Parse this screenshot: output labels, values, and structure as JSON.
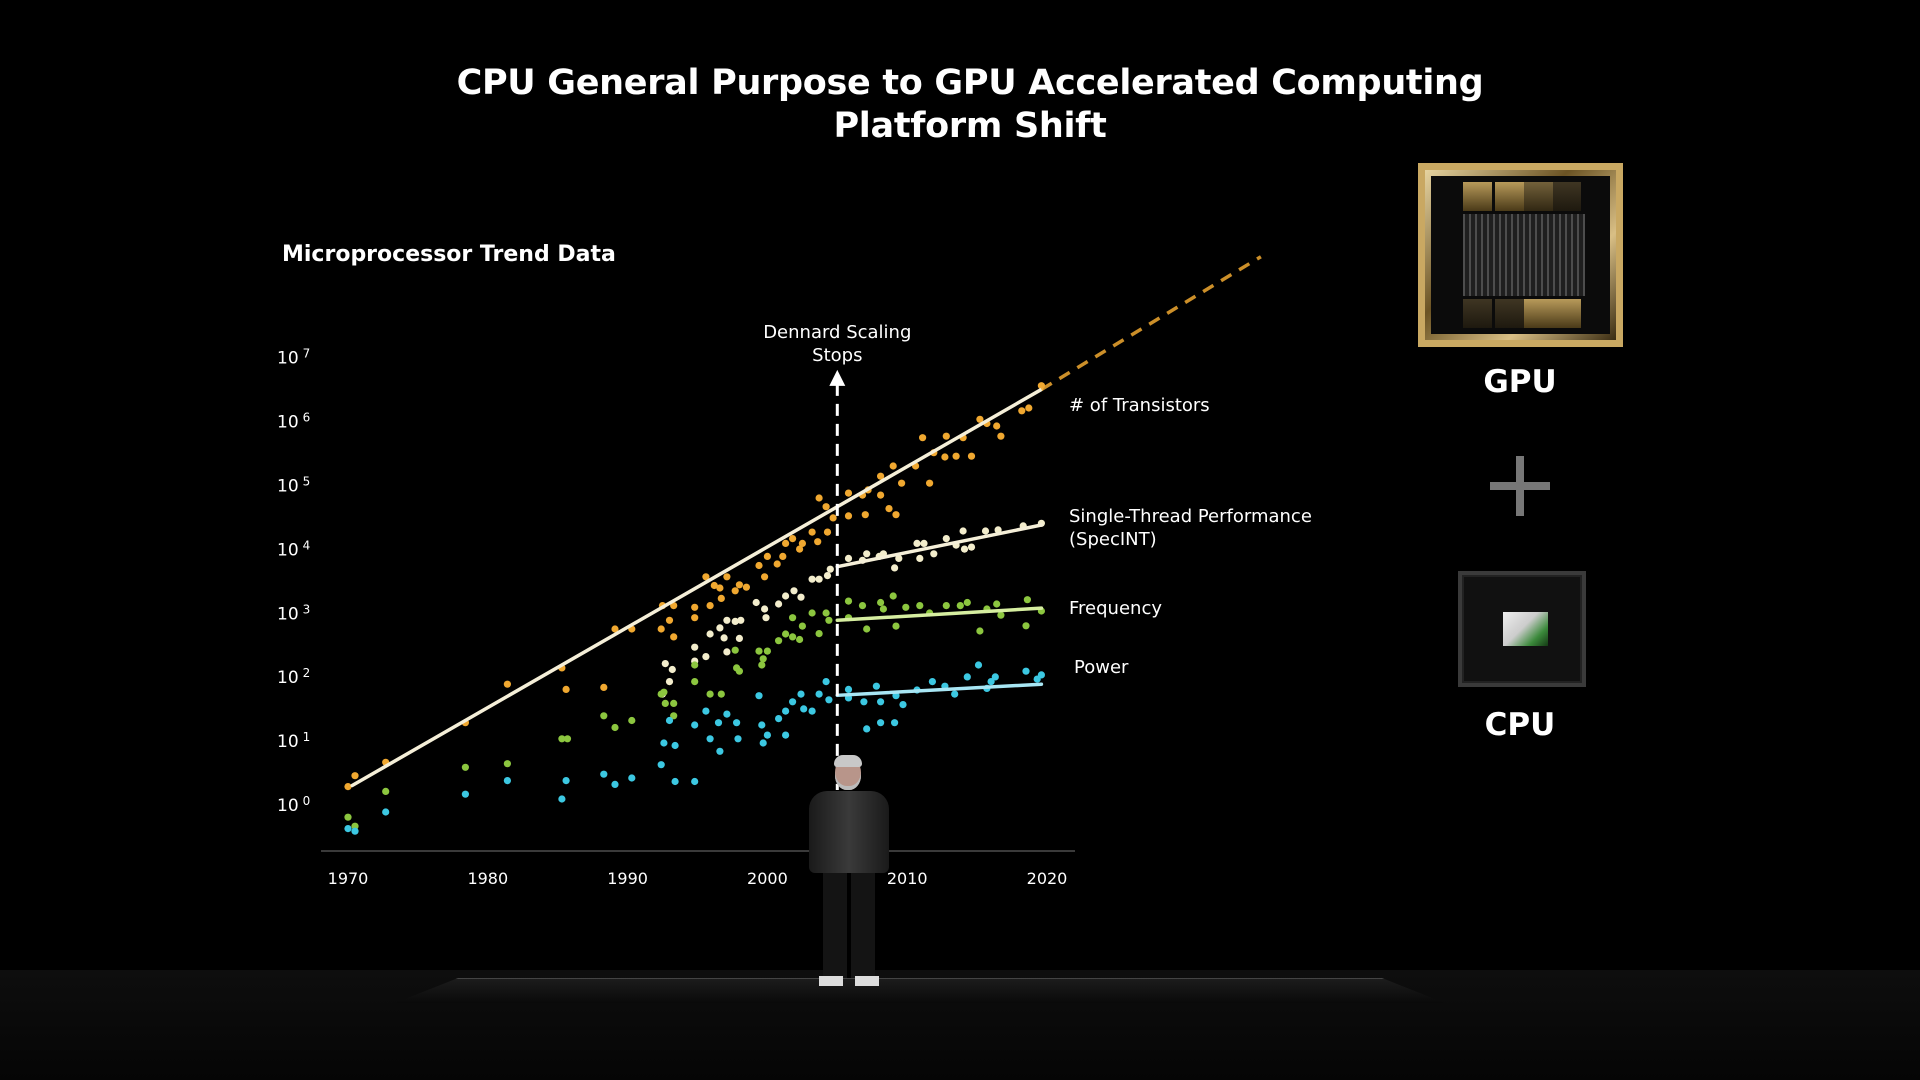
{
  "slide": {
    "title_line1": "CPU General Purpose to GPU Accelerated Computing",
    "title_line2": "Platform Shift",
    "chart_heading": "Microprocessor Trend Data",
    "gpu_label": "GPU",
    "cpu_label": "CPU",
    "plus_icon": "plus-icon"
  },
  "chart_data": {
    "type": "scatter",
    "title": "Microprocessor Trend Data",
    "xlabel": "",
    "ylabel": "",
    "x_ticks": [
      "1970",
      "1980",
      "1990",
      "2000",
      "2010",
      "2020"
    ],
    "y_ticks": [
      {
        "base": "10",
        "exp": "7"
      },
      {
        "base": "10",
        "exp": "6"
      },
      {
        "base": "10",
        "exp": "5"
      },
      {
        "base": "10",
        "exp": "4"
      },
      {
        "base": "10",
        "exp": "3"
      },
      {
        "base": "10",
        "exp": "2"
      },
      {
        "base": "10",
        "exp": "1"
      },
      {
        "base": "10",
        "exp": "0"
      }
    ],
    "y_scale": "log",
    "xlim": [
      1966,
      2022
    ],
    "ylim": [
      0.3,
      10000000
    ],
    "grid": false,
    "annotation": {
      "line1": "Dennard Scaling",
      "line2": "Stops",
      "year": 2005
    },
    "series": [
      {
        "name": "# of Transistors",
        "color": "#f0a830",
        "line_color": "#f5efd8",
        "trend": [
          [
            1970.3,
            2.6
          ],
          [
            2019.6,
            4100000
          ]
        ],
        "projection": [
          [
            2019.6,
            4100000
          ],
          [
            2035.3,
            490000000
          ]
        ],
        "points": [
          [
            1970.0,
            2.5
          ],
          [
            1970.5,
            3.7
          ],
          [
            1972.7,
            6.0
          ],
          [
            1978.4,
            25
          ],
          [
            1981.4,
            100
          ],
          [
            1985.3,
            180
          ],
          [
            1985.6,
            83
          ],
          [
            1988.3,
            89
          ],
          [
            1989.1,
            730
          ],
          [
            1990.3,
            730
          ],
          [
            1992.4,
            730
          ],
          [
            1993.3,
            550
          ],
          [
            1992.5,
            1700
          ],
          [
            1993.3,
            1700
          ],
          [
            1993.0,
            1000
          ],
          [
            1994.8,
            1600
          ],
          [
            1994.8,
            1100
          ],
          [
            1995.6,
            4800
          ],
          [
            1995.9,
            1700
          ],
          [
            1996.2,
            3500
          ],
          [
            1996.6,
            3200
          ],
          [
            1996.7,
            2200
          ],
          [
            1997.1,
            4800
          ],
          [
            1997.7,
            2900
          ],
          [
            1998.0,
            3600
          ],
          [
            1998.5,
            3300
          ],
          [
            1999.4,
            7200
          ],
          [
            1999.8,
            4800
          ],
          [
            2000.0,
            10000
          ],
          [
            2000.7,
            7600
          ],
          [
            2001.1,
            10000
          ],
          [
            2001.3,
            16000
          ],
          [
            2001.8,
            19000
          ],
          [
            2002.3,
            13000
          ],
          [
            2002.5,
            16000
          ],
          [
            2003.2,
            24000
          ],
          [
            2003.6,
            17000
          ],
          [
            2003.7,
            82000
          ],
          [
            2004.2,
            60000
          ],
          [
            2004.3,
            24000
          ],
          [
            2004.7,
            40000
          ],
          [
            2005.8,
            98000
          ],
          [
            2005.8,
            43000
          ],
          [
            2006.8,
            91000
          ],
          [
            2007.0,
            45000
          ],
          [
            2007.2,
            110000
          ],
          [
            2008.1,
            180000
          ],
          [
            2008.1,
            91000
          ],
          [
            2008.7,
            56000
          ],
          [
            2009.0,
            260000
          ],
          [
            2009.2,
            45000
          ],
          [
            2009.6,
            140000
          ],
          [
            2010.6,
            260000
          ],
          [
            2011.6,
            140000
          ],
          [
            2011.1,
            720000
          ],
          [
            2011.9,
            420000
          ],
          [
            2012.7,
            360000
          ],
          [
            2012.8,
            760000
          ],
          [
            2013.5,
            370000
          ],
          [
            2014.0,
            720000
          ],
          [
            2014.6,
            370000
          ],
          [
            2015.2,
            1400000
          ],
          [
            2015.7,
            1200000
          ],
          [
            2016.4,
            1100000
          ],
          [
            2016.7,
            760000
          ],
          [
            2018.2,
            1900000
          ],
          [
            2018.7,
            2100000
          ],
          [
            2019.6,
            4700000
          ]
        ]
      },
      {
        "name": "Single-Thread Performance",
        "name_line2": "(SpecINT)",
        "color": "#f3edcc",
        "line_color": "#f5efd8",
        "trend": [
          [
            2005.0,
            6900
          ],
          [
            2019.6,
            31000
          ]
        ],
        "points": [
          [
            1992.5,
            70
          ],
          [
            1992.7,
            210
          ],
          [
            1993.0,
            110
          ],
          [
            1993.2,
            170
          ],
          [
            1994.8,
            380
          ],
          [
            1994.8,
            230
          ],
          [
            1995.6,
            270
          ],
          [
            1995.9,
            610
          ],
          [
            1996.6,
            760
          ],
          [
            1996.9,
            530
          ],
          [
            1997.1,
            1000
          ],
          [
            1997.1,
            320
          ],
          [
            1997.7,
            960
          ],
          [
            1998.0,
            520
          ],
          [
            1998.1,
            1000
          ],
          [
            1999.2,
            1900
          ],
          [
            1999.8,
            1500
          ],
          [
            1999.9,
            1100
          ],
          [
            2000.8,
            1800
          ],
          [
            2001.3,
            2400
          ],
          [
            2001.9,
            2900
          ],
          [
            2002.4,
            2300
          ],
          [
            2003.2,
            4400
          ],
          [
            2003.7,
            4400
          ],
          [
            2004.3,
            5000
          ],
          [
            2004.5,
            6300
          ],
          [
            2005.8,
            9300
          ],
          [
            2006.8,
            8700
          ],
          [
            2007.1,
            11000
          ],
          [
            2008.0,
            10000
          ],
          [
            2008.3,
            11000
          ],
          [
            2009.1,
            6600
          ],
          [
            2009.4,
            9300
          ],
          [
            2010.7,
            16000
          ],
          [
            2010.9,
            9300
          ],
          [
            2011.2,
            16000
          ],
          [
            2011.9,
            11000
          ],
          [
            2012.8,
            19000
          ],
          [
            2013.5,
            15000
          ],
          [
            2014.0,
            25000
          ],
          [
            2014.1,
            13000
          ],
          [
            2014.6,
            14000
          ],
          [
            2015.6,
            25000
          ],
          [
            2016.5,
            26000
          ],
          [
            2018.3,
            30000
          ],
          [
            2019.6,
            33000
          ]
        ]
      },
      {
        "name": "Frequency",
        "color": "#8cc63f",
        "line_color": "#d6eea0",
        "trend": [
          [
            2005.0,
            1000
          ],
          [
            2019.6,
            1550
          ]
        ],
        "points": [
          [
            1970.0,
            0.83
          ],
          [
            1970.5,
            0.6
          ],
          [
            1972.7,
            2.1
          ],
          [
            1978.4,
            5.0
          ],
          [
            1981.4,
            5.7
          ],
          [
            1985.3,
            14
          ],
          [
            1985.7,
            14
          ],
          [
            1988.3,
            32
          ],
          [
            1989.1,
            21
          ],
          [
            1990.3,
            27
          ],
          [
            1992.4,
            70
          ],
          [
            1992.6,
            75
          ],
          [
            1992.7,
            50
          ],
          [
            1993.3,
            50
          ],
          [
            1993.3,
            32
          ],
          [
            1994.8,
            110
          ],
          [
            1994.8,
            200
          ],
          [
            1995.9,
            70
          ],
          [
            1996.7,
            70
          ],
          [
            1997.7,
            340
          ],
          [
            1997.8,
            180
          ],
          [
            1998.0,
            160
          ],
          [
            1999.4,
            330
          ],
          [
            1999.7,
            250
          ],
          [
            2000.0,
            330
          ],
          [
            1999.6,
            200
          ],
          [
            2000.8,
            480
          ],
          [
            2001.3,
            610
          ],
          [
            2001.8,
            1100
          ],
          [
            2001.8,
            550
          ],
          [
            2002.3,
            500
          ],
          [
            2002.5,
            810
          ],
          [
            2003.2,
            1300
          ],
          [
            2003.7,
            620
          ],
          [
            2004.2,
            1300
          ],
          [
            2004.4,
            1000
          ],
          [
            2005.8,
            2000
          ],
          [
            2005.8,
            1100
          ],
          [
            2006.8,
            1700
          ],
          [
            2007.1,
            730
          ],
          [
            2008.1,
            1900
          ],
          [
            2008.3,
            1500
          ],
          [
            2009.0,
            2400
          ],
          [
            2009.2,
            810
          ],
          [
            2009.9,
            1600
          ],
          [
            2010.9,
            1700
          ],
          [
            2011.6,
            1300
          ],
          [
            2012.8,
            1700
          ],
          [
            2013.8,
            1700
          ],
          [
            2014.3,
            1900
          ],
          [
            2015.2,
            680
          ],
          [
            2015.7,
            1500
          ],
          [
            2016.4,
            1800
          ],
          [
            2016.7,
            1200
          ],
          [
            2018.6,
            2100
          ],
          [
            2018.5,
            820
          ],
          [
            2019.6,
            1400
          ]
        ]
      },
      {
        "name": "Power",
        "color": "#3cc8e2",
        "line_color": "#a8e6f4",
        "trend": [
          [
            2005.0,
            67
          ],
          [
            2019.6,
            100
          ]
        ],
        "points": [
          [
            1970.0,
            0.55
          ],
          [
            1970.5,
            0.5
          ],
          [
            1972.7,
            1.0
          ],
          [
            1978.4,
            1.9
          ],
          [
            1981.4,
            3.1
          ],
          [
            1985.3,
            1.6
          ],
          [
            1985.6,
            3.1
          ],
          [
            1988.3,
            3.9
          ],
          [
            1989.1,
            2.7
          ],
          [
            1990.3,
            3.4
          ],
          [
            1992.4,
            5.5
          ],
          [
            1992.6,
            12
          ],
          [
            1993.0,
            27
          ],
          [
            1993.4,
            11
          ],
          [
            1993.4,
            3.0
          ],
          [
            1994.8,
            23
          ],
          [
            1994.8,
            3.0
          ],
          [
            1995.6,
            38
          ],
          [
            1995.9,
            14
          ],
          [
            1996.5,
            25
          ],
          [
            1996.6,
            8.9
          ],
          [
            1997.1,
            34
          ],
          [
            1997.8,
            25
          ],
          [
            1997.9,
            14
          ],
          [
            1999.4,
            66
          ],
          [
            1999.6,
            23
          ],
          [
            1999.7,
            12
          ],
          [
            2000.0,
            16
          ],
          [
            2000.8,
            29
          ],
          [
            2001.3,
            16
          ],
          [
            2001.3,
            38
          ],
          [
            2001.8,
            53
          ],
          [
            2002.4,
            70
          ],
          [
            2002.6,
            41
          ],
          [
            2003.2,
            38
          ],
          [
            2003.7,
            70
          ],
          [
            2004.2,
            110
          ],
          [
            2004.4,
            57
          ],
          [
            2005.8,
            83
          ],
          [
            2005.8,
            61
          ],
          [
            2006.9,
            53
          ],
          [
            2007.1,
            20
          ],
          [
            2007.8,
            93
          ],
          [
            2008.1,
            53
          ],
          [
            2008.1,
            25
          ],
          [
            2009.1,
            25
          ],
          [
            2009.2,
            66
          ],
          [
            2009.7,
            48
          ],
          [
            2010.7,
            81
          ],
          [
            2011.8,
            110
          ],
          [
            2012.7,
            93
          ],
          [
            2013.4,
            70
          ],
          [
            2014.3,
            130
          ],
          [
            2015.1,
            200
          ],
          [
            2015.7,
            86
          ],
          [
            2016.0,
            110
          ],
          [
            2016.3,
            130
          ],
          [
            2018.5,
            160
          ],
          [
            2019.3,
            120
          ],
          [
            2019.6,
            140
          ]
        ]
      }
    ]
  }
}
